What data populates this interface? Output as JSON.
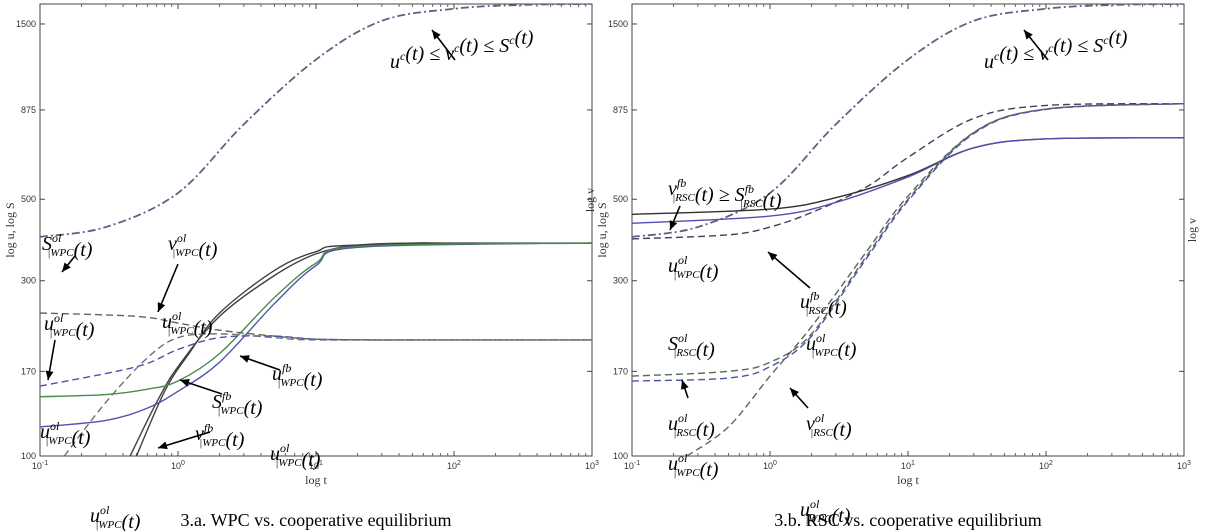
{
  "chart_data": [
    {
      "type": "line",
      "caption": "3.a. WPC vs. cooperative equilibrium",
      "xlabel": "log t",
      "ylabel": "log u,  log S",
      "xscale": "log",
      "xlim": [
        0.1,
        1000
      ],
      "ylim": [
        100,
        1700
      ],
      "xticks": [
        {
          "v": 0.1,
          "label": "10",
          "exp": "-1"
        },
        {
          "v": 1,
          "label": "10",
          "exp": "0"
        },
        {
          "v": 10,
          "label": "10",
          "exp": "1"
        },
        {
          "v": 100,
          "label": "10",
          "exp": "2"
        },
        {
          "v": 1000,
          "label": "10",
          "exp": "3"
        }
      ],
      "yticks": [
        100,
        170,
        300,
        500,
        875,
        1500
      ],
      "series": [
        {
          "style": "dashdot",
          "color": "#606080",
          "x": [
            0.1,
            0.3,
            1,
            3,
            10,
            30,
            100,
            300,
            1000
          ],
          "y": [
            395,
            420,
            520,
            800,
            1200,
            1530,
            1650,
            1690,
            1700
          ]
        },
        {
          "style": "solid",
          "color": "#404040",
          "x": [
            0.45,
            0.7,
            1,
            2,
            5,
            10,
            20,
            50,
            100,
            1000
          ],
          "y": [
            100,
            140,
            175,
            240,
            310,
            355,
            375,
            380,
            380,
            380
          ]
        },
        {
          "style": "solid",
          "color": "#404040",
          "x": [
            0.5,
            0.8,
            1.2,
            2,
            5,
            10,
            20,
            1000
          ],
          "y": [
            100,
            150,
            190,
            245,
            320,
            360,
            375,
            380
          ]
        },
        {
          "style": "solid",
          "color": "#5050b0",
          "x": [
            0.1,
            0.3,
            0.6,
            1,
            2,
            5,
            10,
            20,
            1000
          ],
          "y": [
            120,
            125,
            135,
            150,
            180,
            260,
            330,
            370,
            380
          ]
        },
        {
          "style": "solid",
          "color": "#4a8a4a",
          "x": [
            0.1,
            0.3,
            0.6,
            1,
            2,
            5,
            10,
            20,
            1000
          ],
          "y": [
            145,
            147,
            152,
            160,
            190,
            270,
            335,
            372,
            380
          ]
        },
        {
          "style": "dashed",
          "color": "#507050",
          "x": [
            0.1,
            0.5,
            1,
            2,
            5,
            10,
            30,
            100,
            1000
          ],
          "y": [
            245,
            240,
            230,
            220,
            212,
            208,
            207,
            207,
            207
          ]
        },
        {
          "style": "dashed",
          "color": "#5050b0",
          "x": [
            0.1,
            0.5,
            1,
            2,
            5,
            10,
            30,
            100,
            1000
          ],
          "y": [
            155,
            175,
            195,
            210,
            212,
            208,
            207,
            207,
            207
          ]
        },
        {
          "style": "dashed",
          "color": "#707070",
          "x": [
            0.15,
            0.3,
            0.6,
            1,
            2,
            5,
            10,
            100,
            1000
          ],
          "y": [
            100,
            140,
            185,
            210,
            215,
            210,
            207,
            207,
            207
          ]
        }
      ],
      "annotations": [
        {
          "base": "u",
          "sup": "c",
          "tail": "(t) ≤ v",
          "sup2": "c",
          "tail2": "(t) ≤ S",
          "sup3": "c",
          "end": "(t)"
        },
        {
          "base": "S",
          "sup": "ol",
          "sub": "|WPC",
          "end": "(t)"
        },
        {
          "base": "v",
          "sup": "ol",
          "sub": "|WPC",
          "end": "(t)"
        },
        {
          "base": "u",
          "sup": "ol",
          "sub": "|WPC",
          "end": "(t)"
        },
        {
          "base": "u",
          "sup": "ol",
          "sub": "|WPC",
          "end": "(t)"
        },
        {
          "base": "u",
          "sup": "fb",
          "sub": "|WPC",
          "end": "(t)"
        },
        {
          "base": "S",
          "sup": "fb",
          "sub": "|WPC",
          "end": "(t)"
        },
        {
          "base": "u",
          "sup": "ol",
          "sub": "|WPC",
          "end": "(t)"
        },
        {
          "base": "v",
          "sup": "fb",
          "sub": "|WPC",
          "end": "(t)"
        },
        {
          "base": "u",
          "sup": "ol",
          "sub": "|WPC",
          "end": "(t)"
        },
        {
          "base": "u",
          "sup": "ol",
          "sub": "|WPC",
          "end": "(t)"
        }
      ]
    },
    {
      "type": "line",
      "caption": "3.b. RSC vs. cooperative equilibrium",
      "xlabel": "log t",
      "ylabel": "log u,  log S",
      "ylabel_top": "log v",
      "ylabel_right": "log v",
      "xscale": "log",
      "xlim": [
        0.1,
        1000
      ],
      "ylim": [
        100,
        1700
      ],
      "xticks": [
        {
          "v": 0.1,
          "label": "10",
          "exp": "-1"
        },
        {
          "v": 1,
          "label": "10",
          "exp": "0"
        },
        {
          "v": 10,
          "label": "10",
          "exp": "1"
        },
        {
          "v": 100,
          "label": "10",
          "exp": "2"
        },
        {
          "v": 1000,
          "label": "10",
          "exp": "3"
        }
      ],
      "yticks": [
        100,
        170,
        300,
        500,
        875,
        1500
      ],
      "series": [
        {
          "style": "dashdot",
          "color": "#606080",
          "x": [
            0.1,
            0.3,
            1,
            3,
            10,
            30,
            100,
            300,
            1000
          ],
          "y": [
            395,
            420,
            520,
            800,
            1200,
            1530,
            1650,
            1690,
            1700
          ]
        },
        {
          "style": "dashed",
          "color": "#404060",
          "x": [
            0.1,
            0.5,
            1,
            2,
            5,
            10,
            30,
            100,
            1000
          ],
          "y": [
            390,
            400,
            420,
            460,
            540,
            650,
            830,
            900,
            910
          ]
        },
        {
          "style": "solid",
          "color": "#303030",
          "x": [
            0.1,
            1,
            3,
            10,
            30,
            100,
            1000
          ],
          "y": [
            455,
            470,
            505,
            580,
            690,
            730,
            735
          ]
        },
        {
          "style": "solid",
          "color": "#5050b0",
          "x": [
            0.1,
            1,
            3,
            10,
            30,
            100,
            1000
          ],
          "y": [
            430,
            450,
            490,
            575,
            690,
            730,
            735
          ]
        },
        {
          "style": "dashed",
          "color": "#507050",
          "x": [
            0.1,
            0.5,
            1,
            2,
            5,
            10,
            30,
            100,
            1000
          ],
          "y": [
            165,
            170,
            180,
            215,
            350,
            500,
            760,
            880,
            910
          ]
        },
        {
          "style": "dashed",
          "color": "#5050b0",
          "x": [
            0.1,
            0.5,
            1,
            2,
            5,
            10,
            30,
            100,
            1000
          ],
          "y": [
            160,
            163,
            175,
            212,
            345,
            495,
            755,
            878,
            910
          ]
        },
        {
          "style": "dashed",
          "color": "#606060",
          "x": [
            0.25,
            0.5,
            1,
            2,
            5,
            10,
            30,
            100,
            1000
          ],
          "y": [
            100,
            120,
            165,
            225,
            360,
            510,
            760,
            880,
            910
          ]
        }
      ],
      "annotations": [
        {
          "base": "u",
          "sup": "c",
          "tail": "(t) ≤ v",
          "sup2": "c",
          "tail2": "(t) ≤ S",
          "sup3": "c",
          "end": "(t)"
        },
        {
          "base": "v",
          "sup": "fb",
          "sub": "|RSC",
          "tail": "(t) ≥ S",
          "sup2": "fb",
          "sub2": "|RSC",
          "end": "(t)"
        },
        {
          "base": "u",
          "sup": "ol",
          "sub": "|WPC",
          "end": "(t)"
        },
        {
          "base": "u",
          "sup": "fb",
          "sub": "|RSC",
          "end": "(t)"
        },
        {
          "base": "S",
          "sup": "ol",
          "sub": "|RSC",
          "end": "(t)"
        },
        {
          "base": "u",
          "sup": "ol",
          "sub": "|WPC",
          "end": "(t)"
        },
        {
          "base": "u",
          "sup": "ol",
          "sub": "|RSC",
          "end": "(t)"
        },
        {
          "base": "v",
          "sup": "ol",
          "sub": "|RSC",
          "end": "(t)"
        },
        {
          "base": "u",
          "sup": "ol",
          "sub": "|WPC",
          "end": "(t)"
        },
        {
          "base": "u",
          "sup": "ol",
          "sub": "|WPC",
          "end": "(t)"
        }
      ]
    }
  ]
}
